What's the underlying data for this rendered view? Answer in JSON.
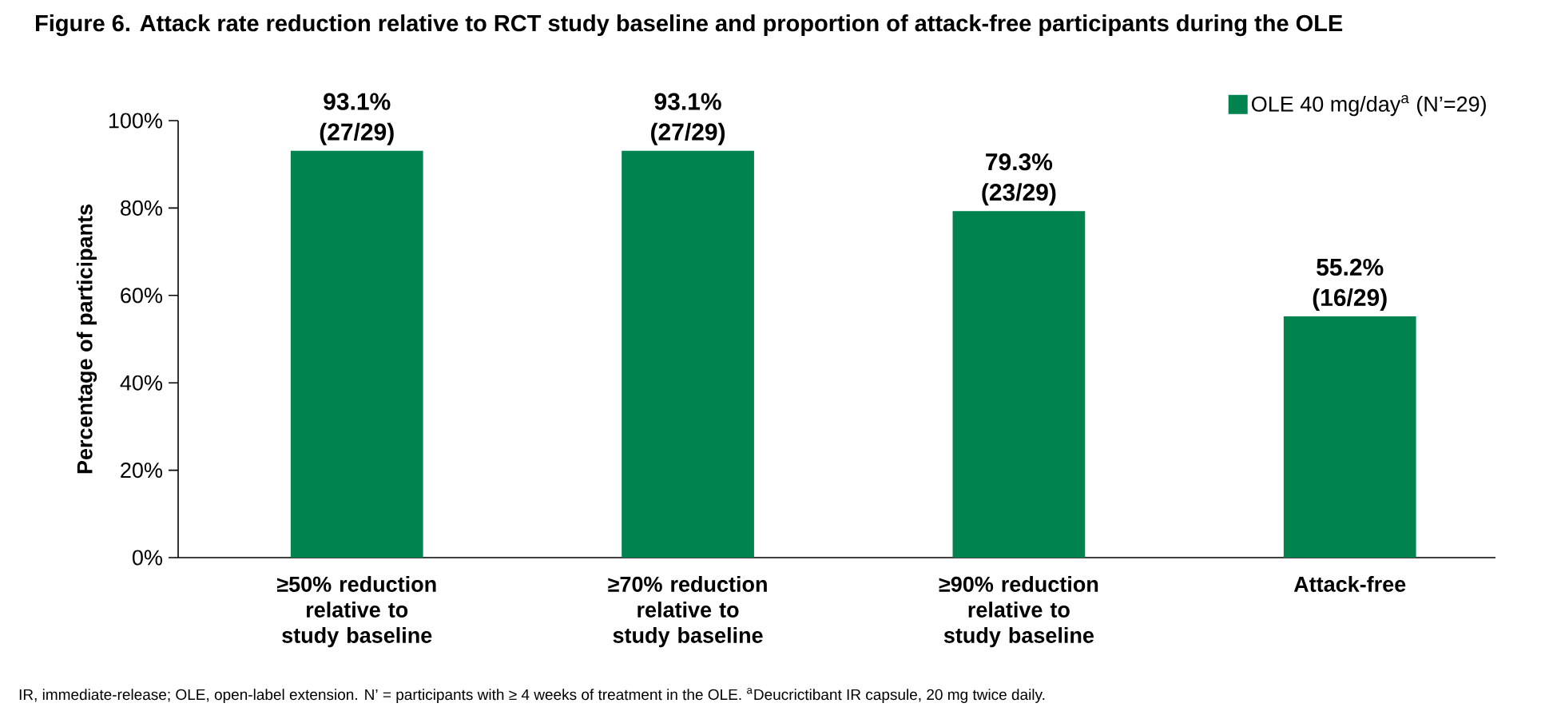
{
  "chart_data": {
    "type": "bar",
    "title": "Figure 6. Attack rate reduction relative to RCT study baseline and proportion of attack-free participants during the OLE",
    "ylabel": "Percentage of participants",
    "categories": [
      "≥50% reduction relative to study baseline",
      "≥70% reduction relative to study baseline",
      "≥90% reduction relative to study baseline",
      "Attack-free"
    ],
    "series": [
      {
        "name": "OLE 40 mg/day$^{a}$ (N’=29)",
        "color": "#00834f",
        "values": [
          93.1,
          93.1,
          79.3,
          55.2
        ],
        "value_labels": [
          "93.1% (27/29)",
          "93.1% (27/29)",
          "79.3% (23/29)",
          "55.2% (16/29)"
        ]
      }
    ],
    "ylim": [
      0,
      100
    ],
    "yticks": [
      {
        "value": 0,
        "label": "0%"
      },
      {
        "value": 20,
        "label": "20%"
      },
      {
        "value": 40,
        "label": "40%"
      },
      {
        "value": 60,
        "label": "60%"
      },
      {
        "value": 80,
        "label": "80%"
      },
      {
        "value": 100,
        "label": "100%"
      }
    ],
    "grid": false,
    "legend": "top right",
    "annotations": [
      "IR, immediate-release; OLE, open-label extension. N’ = participants with ≥ 4 weeks of treatment in the OLE. $^{a}$Deucrictibant IR capsule, 20 mg twice daily."
    ]
  }
}
